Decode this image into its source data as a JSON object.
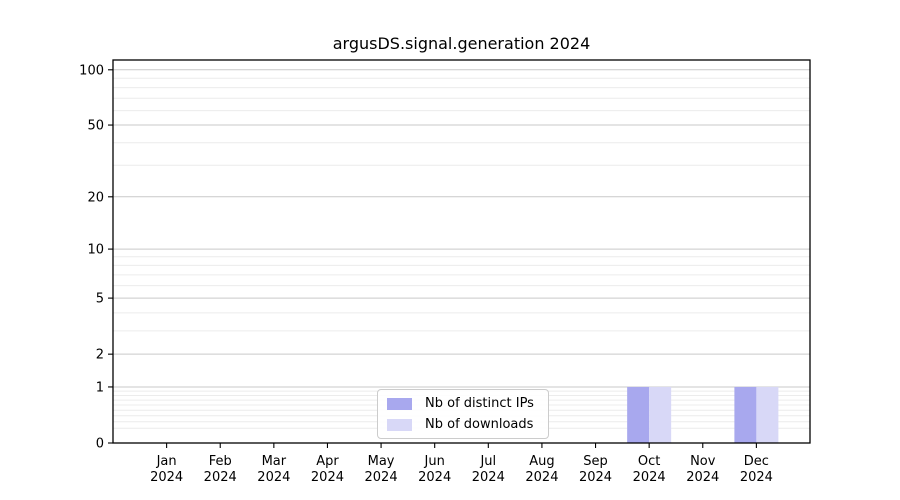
{
  "title": "argusDS.signal.generation 2024",
  "chart_data": {
    "type": "bar",
    "title": "argusDS.signal.generation 2024",
    "categories": [
      "Jan 2024",
      "Feb 2024",
      "Mar 2024",
      "Apr 2024",
      "May 2024",
      "Jun 2024",
      "Jul 2024",
      "Aug 2024",
      "Sep 2024",
      "Oct 2024",
      "Nov 2024",
      "Dec 2024"
    ],
    "series": [
      {
        "name": "Nb of distinct IPs",
        "color": "#a8a8ee",
        "values": [
          0,
          0,
          0,
          0,
          0,
          0,
          0,
          0,
          0,
          1,
          0,
          1
        ]
      },
      {
        "name": "Nb of downloads",
        "color": "#d8d8f7",
        "values": [
          0,
          0,
          0,
          0,
          0,
          0,
          0,
          0,
          0,
          1,
          0,
          1
        ]
      }
    ],
    "xlabel": "",
    "ylabel": "",
    "yscale": "log1p",
    "ylim": [
      0,
      113
    ],
    "y_major_ticks": [
      0,
      1,
      2,
      5,
      10,
      20,
      50,
      100
    ],
    "y_minor_ticks": [
      0.2,
      0.3,
      0.4,
      0.5,
      0.6,
      0.7,
      0.8,
      0.9,
      3,
      4,
      6,
      7,
      8,
      9,
      30,
      40,
      60,
      70,
      80,
      90
    ],
    "grid": "on",
    "legend_position": "lower center inside"
  },
  "colors": {
    "axis_frame": "#000000",
    "major_grid": "#c9c9c9",
    "minor_grid": "#ececec",
    "background": "#ffffff"
  }
}
